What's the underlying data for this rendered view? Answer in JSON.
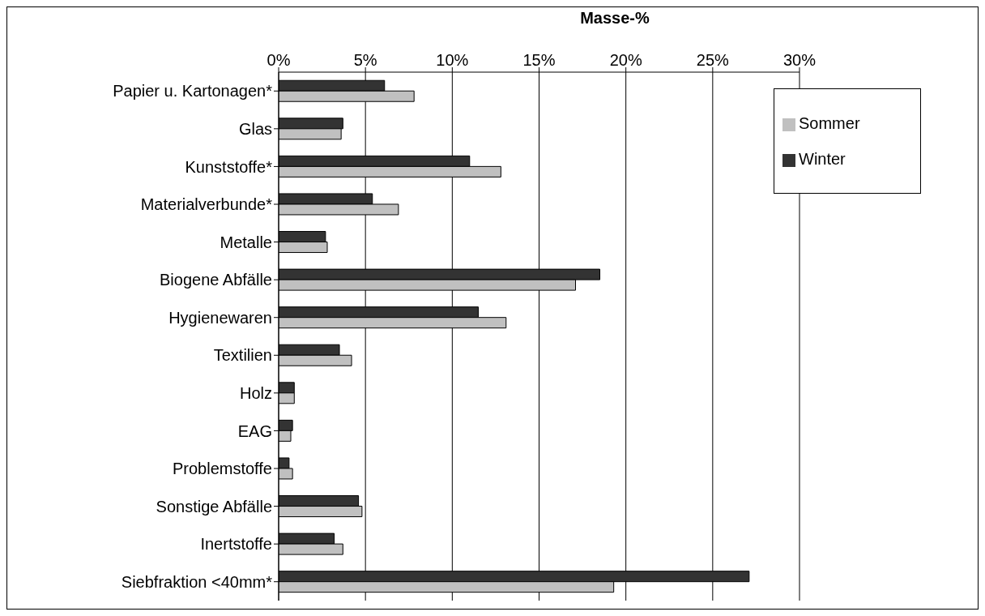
{
  "chart_data": {
    "type": "bar",
    "orientation": "horizontal",
    "xlabel": "Masse-%",
    "categories": [
      "Papier u. Kartonagen*",
      "Glas",
      "Kunststoffe*",
      "Materialverbunde*",
      "Metalle",
      "Biogene Abfälle",
      "Hygienewaren",
      "Textilien",
      "Holz",
      "EAG",
      "Problemstoffe",
      "Sonstige Abfälle",
      "Inertstoffe",
      "Siebfraktion <40mm*"
    ],
    "series": [
      {
        "name": "Winter",
        "color": "#333333",
        "values": [
          6.1,
          3.7,
          11.0,
          5.4,
          2.7,
          18.5,
          11.5,
          3.5,
          0.9,
          0.8,
          0.6,
          4.6,
          3.2,
          27.1
        ]
      },
      {
        "name": "Sommer",
        "color": "#c0c0c0",
        "values": [
          7.8,
          3.6,
          12.8,
          6.9,
          2.8,
          17.1,
          13.1,
          4.2,
          0.9,
          0.7,
          0.8,
          4.8,
          3.7,
          19.3
        ]
      }
    ],
    "xlim": [
      0,
      30
    ],
    "xticks": [
      {
        "value": 0,
        "label": "0%"
      },
      {
        "value": 5,
        "label": "5%"
      },
      {
        "value": 10,
        "label": "10%"
      },
      {
        "value": 15,
        "label": "15%"
      },
      {
        "value": 20,
        "label": "20%"
      },
      {
        "value": 25,
        "label": "25%"
      },
      {
        "value": 30,
        "label": "30%"
      }
    ],
    "grid": "x",
    "legend": "top right"
  }
}
